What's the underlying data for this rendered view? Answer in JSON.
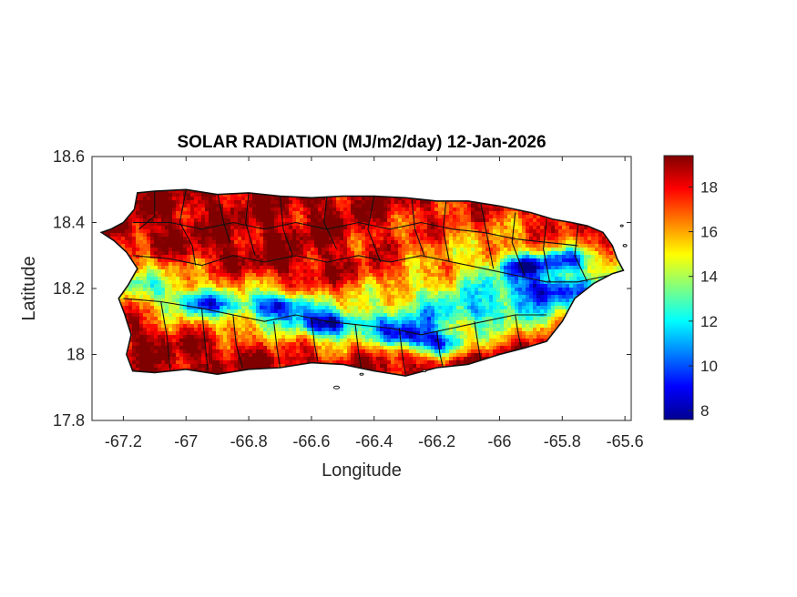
{
  "chart_data": {
    "type": "heatmap",
    "title": "SOLAR RADIATION (MJ/m2/day) 12-Jan-2026",
    "xlabel": "Longitude",
    "ylabel": "Latitude",
    "xlim": [
      -67.3,
      -65.58
    ],
    "ylim": [
      17.8,
      18.6
    ],
    "x_ticks": [
      -67.2,
      -67,
      -66.8,
      -66.6,
      -66.4,
      -66.2,
      -66,
      -65.8,
      -65.6
    ],
    "x_tick_labels": [
      "-67.2",
      "-67",
      "-66.8",
      "-66.6",
      "-66.4",
      "-66.2",
      "-66",
      "-65.8",
      "-65.6"
    ],
    "y_ticks": [
      17.8,
      18,
      18.2,
      18.4,
      18.6
    ],
    "y_tick_labels": [
      "17.8",
      "18",
      "18.2",
      "18.4",
      "18.6"
    ],
    "colormap": "jet",
    "colorbar": {
      "range": [
        7.6,
        19.4
      ],
      "ticks": [
        8,
        10,
        12,
        14,
        16,
        18
      ],
      "tick_labels": [
        "8",
        "10",
        "12",
        "14",
        "16",
        "18"
      ]
    },
    "grid": false,
    "field_summary": {
      "coast_high_values": 19,
      "interior_low_values": 8,
      "low_band_centers": [
        {
          "lon": -66.7,
          "lat": 18.15,
          "value": 9.0
        },
        {
          "lon": -66.55,
          "lat": 18.09,
          "value": 8.5
        },
        {
          "lon": -66.3,
          "lat": 18.06,
          "value": 9.0
        },
        {
          "lon": -66.2,
          "lat": 18.03,
          "value": 9.5
        },
        {
          "lon": -65.92,
          "lat": 18.27,
          "value": 9.0
        },
        {
          "lon": -65.78,
          "lat": 18.29,
          "value": 10.0
        },
        {
          "lon": -65.85,
          "lat": 18.2,
          "value": 10.5
        },
        {
          "lon": -66.95,
          "lat": 18.15,
          "value": 11.0
        }
      ]
    }
  }
}
